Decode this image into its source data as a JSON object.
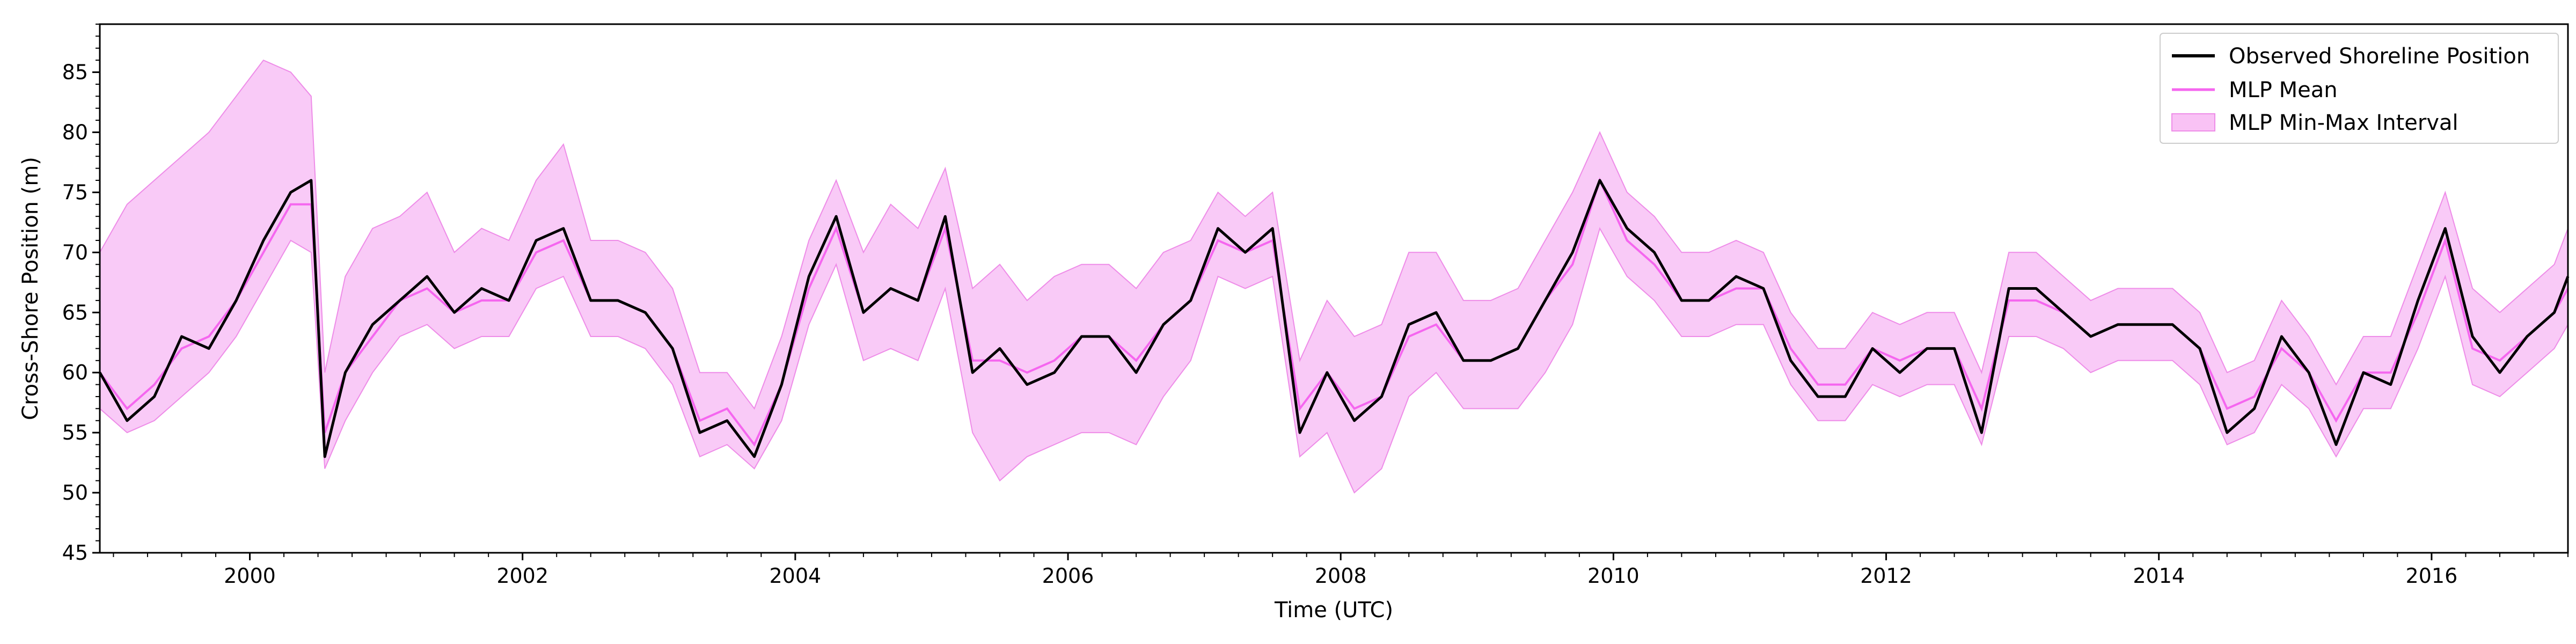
{
  "chart_data": {
    "type": "line",
    "xlabel": "Time (UTC)",
    "ylabel": "Cross-Shore Position (m)",
    "xlim": [
      1998.9,
      2017.0
    ],
    "ylim": [
      45,
      89
    ],
    "x_ticks": [
      2000,
      2002,
      2004,
      2006,
      2008,
      2010,
      2012,
      2014,
      2016
    ],
    "x_tick_labels": [
      "2000",
      "2002",
      "2004",
      "2006",
      "2008",
      "2010",
      "2012",
      "2014",
      "2016"
    ],
    "y_ticks": [
      45,
      50,
      55,
      60,
      65,
      70,
      75,
      80,
      85
    ],
    "y_tick_labels": [
      "45",
      "50",
      "55",
      "60",
      "65",
      "70",
      "75",
      "80",
      "85"
    ],
    "legend_position": "top-right",
    "colors": {
      "observed": "#000000",
      "mean": "#f566ef",
      "band_fill": "#f7b3f3",
      "band_edge": "#ee8ce8"
    },
    "x": [
      1998.9,
      1999.1,
      1999.3,
      1999.5,
      1999.7,
      1999.9,
      2000.1,
      2000.3,
      2000.45,
      2000.55,
      2000.7,
      2000.9,
      2001.1,
      2001.3,
      2001.5,
      2001.7,
      2001.9,
      2002.1,
      2002.3,
      2002.5,
      2002.7,
      2002.9,
      2003.1,
      2003.3,
      2003.5,
      2003.7,
      2003.9,
      2004.1,
      2004.3,
      2004.5,
      2004.7,
      2004.9,
      2005.1,
      2005.3,
      2005.5,
      2005.7,
      2005.9,
      2006.1,
      2006.3,
      2006.5,
      2006.7,
      2006.9,
      2007.1,
      2007.3,
      2007.5,
      2007.7,
      2007.9,
      2008.1,
      2008.3,
      2008.5,
      2008.7,
      2008.9,
      2009.1,
      2009.3,
      2009.5,
      2009.7,
      2009.9,
      2010.1,
      2010.3,
      2010.5,
      2010.7,
      2010.9,
      2011.1,
      2011.3,
      2011.5,
      2011.7,
      2011.9,
      2012.1,
      2012.3,
      2012.5,
      2012.7,
      2012.9,
      2013.1,
      2013.3,
      2013.5,
      2013.7,
      2013.9,
      2014.1,
      2014.3,
      2014.5,
      2014.7,
      2014.9,
      2015.1,
      2015.3,
      2015.5,
      2015.7,
      2015.9,
      2016.1,
      2016.3,
      2016.5,
      2016.7,
      2016.9,
      2017.0
    ],
    "series": [
      {
        "name": "Observed Shoreline Position",
        "values": [
          60,
          56,
          58,
          63,
          62,
          66,
          71,
          75,
          76,
          53,
          60,
          64,
          66,
          68,
          65,
          67,
          66,
          71,
          72,
          66,
          66,
          65,
          62,
          55,
          56,
          53,
          59,
          68,
          73,
          65,
          67,
          66,
          73,
          60,
          62,
          59,
          60,
          63,
          63,
          60,
          64,
          66,
          72,
          70,
          72,
          55,
          60,
          56,
          58,
          64,
          65,
          61,
          61,
          62,
          66,
          70,
          76,
          72,
          70,
          66,
          66,
          68,
          67,
          61,
          58,
          58,
          62,
          60,
          62,
          62,
          55,
          67,
          67,
          65,
          63,
          64,
          64,
          64,
          62,
          55,
          57,
          63,
          60,
          54,
          60,
          59,
          66,
          72,
          63,
          60,
          63,
          65,
          68
        ]
      },
      {
        "name": "MLP Mean",
        "values": [
          60,
          57,
          59,
          62,
          63,
          66,
          70,
          74,
          74,
          55,
          60,
          63,
          66,
          67,
          65,
          66,
          66,
          70,
          71,
          66,
          66,
          65,
          62,
          56,
          57,
          54,
          59,
          67,
          72,
          65,
          67,
          66,
          72,
          61,
          61,
          60,
          61,
          63,
          63,
          61,
          64,
          66,
          71,
          70,
          71,
          57,
          60,
          57,
          58,
          63,
          64,
          61,
          61,
          62,
          66,
          69,
          76,
          71,
          69,
          66,
          66,
          67,
          67,
          62,
          59,
          59,
          62,
          61,
          62,
          62,
          57,
          66,
          66,
          65,
          63,
          64,
          64,
          64,
          62,
          57,
          58,
          62,
          60,
          56,
          60,
          60,
          65,
          71,
          62,
          61,
          63,
          65,
          67
        ]
      }
    ],
    "band": {
      "name": "MLP Min-Max Interval",
      "lower": [
        57,
        55,
        56,
        58,
        60,
        63,
        67,
        71,
        70,
        52,
        56,
        60,
        63,
        64,
        62,
        63,
        63,
        67,
        68,
        63,
        63,
        62,
        59,
        53,
        54,
        52,
        56,
        64,
        69,
        61,
        62,
        61,
        67,
        55,
        51,
        53,
        54,
        55,
        55,
        54,
        58,
        61,
        68,
        67,
        68,
        53,
        55,
        50,
        52,
        58,
        60,
        57,
        57,
        57,
        60,
        64,
        72,
        68,
        66,
        63,
        63,
        64,
        64,
        59,
        56,
        56,
        59,
        58,
        59,
        59,
        54,
        63,
        63,
        62,
        60,
        61,
        61,
        61,
        59,
        54,
        55,
        59,
        57,
        53,
        57,
        57,
        62,
        68,
        59,
        58,
        60,
        62,
        64
      ],
      "upper": [
        70,
        74,
        76,
        78,
        80,
        83,
        86,
        85,
        83,
        60,
        68,
        72,
        73,
        75,
        70,
        72,
        71,
        76,
        79,
        71,
        71,
        70,
        67,
        60,
        60,
        57,
        63,
        71,
        76,
        70,
        74,
        72,
        77,
        67,
        69,
        66,
        68,
        69,
        69,
        67,
        70,
        71,
        75,
        73,
        75,
        61,
        66,
        63,
        64,
        70,
        70,
        66,
        66,
        67,
        71,
        75,
        80,
        75,
        73,
        70,
        70,
        71,
        70,
        65,
        62,
        62,
        65,
        64,
        65,
        65,
        60,
        70,
        70,
        68,
        66,
        67,
        67,
        67,
        65,
        60,
        61,
        66,
        63,
        59,
        63,
        63,
        69,
        75,
        67,
        65,
        67,
        69,
        72
      ]
    }
  }
}
